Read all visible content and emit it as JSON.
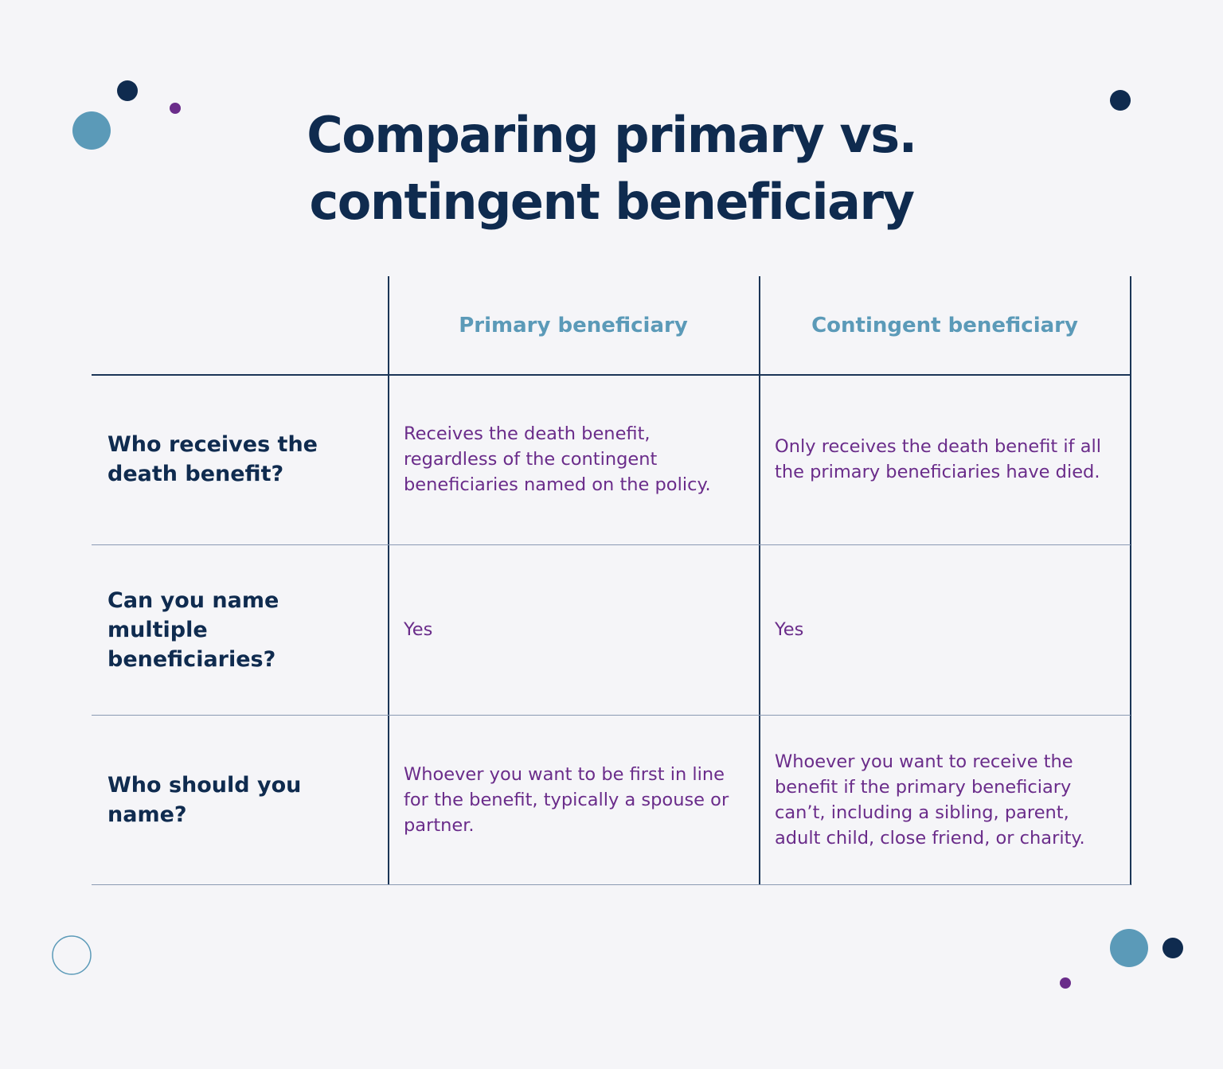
{
  "title": "Comparing primary vs. contingent beneficiary",
  "table": {
    "columns": [
      "Primary beneficiary",
      "Contingent beneficiary"
    ],
    "rows": [
      [
        "Who receives the death benefit?",
        "Receives the death benefit, regardless of the contingent beneficiaries named on the policy.",
        "Only receives the death benefit if all the primary beneficiaries have died."
      ],
      [
        "Can you name multiple beneficiaries?",
        "Yes",
        "Yes"
      ],
      [
        "Who should you name?",
        "Whoever you want to be first in line for the benefit, typically a spouse or partner.",
        "Whoever you want to receive the benefit if the primary beneficiary can’t, including a sibling, parent, adult child, close friend, or charity."
      ]
    ]
  }
}
